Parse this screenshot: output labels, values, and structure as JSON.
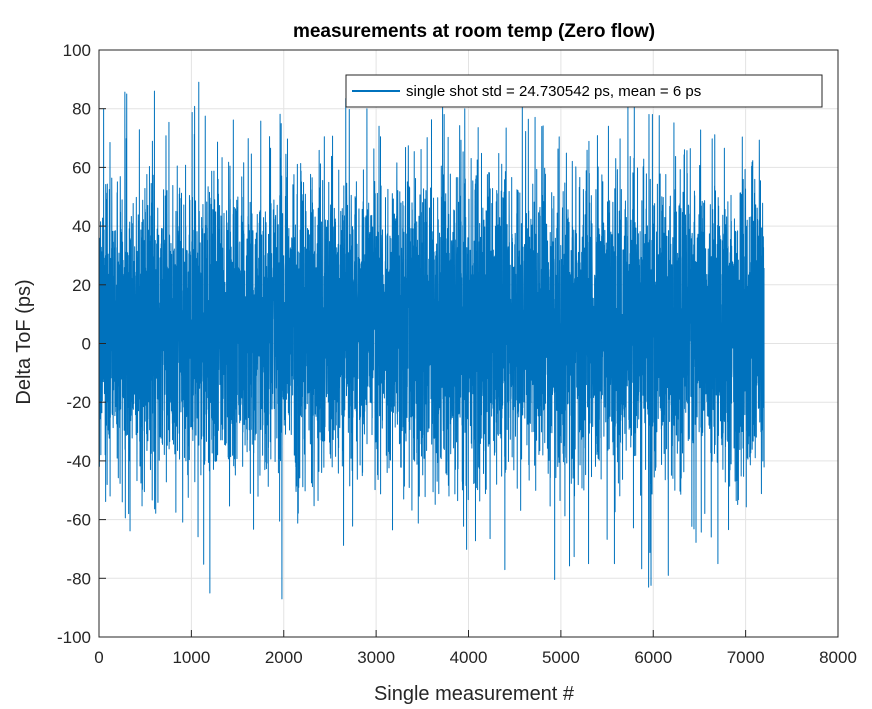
{
  "chart_data": {
    "type": "line",
    "title": "measurements at room temp (Zero flow)",
    "xlabel": "Single measurement #",
    "ylabel": "Delta ToF (ps)",
    "xlim": [
      0,
      8000
    ],
    "ylim": [
      -100,
      100
    ],
    "xticks": [
      0,
      1000,
      2000,
      3000,
      4000,
      5000,
      6000,
      7000,
      8000
    ],
    "yticks": [
      -100,
      -80,
      -60,
      -40,
      -20,
      0,
      20,
      40,
      60,
      80,
      100
    ],
    "grid": true,
    "legend_position": "top-right",
    "series": [
      {
        "name": "single shot std = 24.730542 ps, mean = 6 ps",
        "color": "#0072BD",
        "n_points": 7200,
        "mean": 6,
        "std": 24.730542,
        "x_range": [
          0,
          7200
        ],
        "extremes": [
          {
            "x": 50,
            "y": 80
          },
          {
            "x": 300,
            "y": 85
          },
          {
            "x": 600,
            "y": 86
          },
          {
            "x": 1080,
            "y": 89
          },
          {
            "x": 1200,
            "y": -85
          },
          {
            "x": 1980,
            "y": -87
          },
          {
            "x": 2900,
            "y": 80
          },
          {
            "x": 3720,
            "y": 83
          },
          {
            "x": 3960,
            "y": 80
          },
          {
            "x": 5300,
            "y": -75
          },
          {
            "x": 5580,
            "y": -75
          },
          {
            "x": 5950,
            "y": -83
          },
          {
            "x": 6700,
            "y": -75
          }
        ]
      }
    ]
  }
}
